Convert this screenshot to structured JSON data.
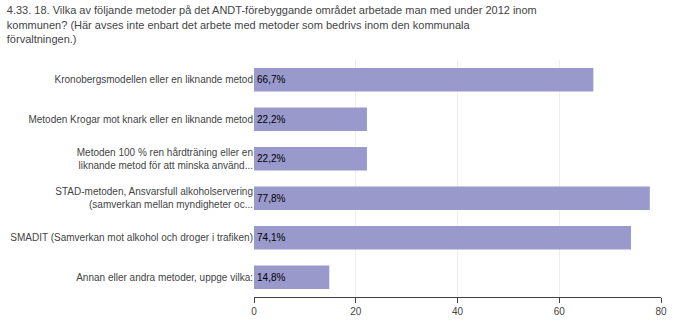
{
  "chart_data": {
    "type": "bar",
    "orientation": "horizontal",
    "title": "4.33. 18. Vilka av följande metoder på det ANDT-förebyggande området arbetade man med under 2012 inom\nkommunen? (Här avses inte enbart det arbete med metoder som bedrivs inom den kommunala\nförvaltningen.)",
    "categories": [
      "Kronobergsmodellen eller en liknande metod",
      "Metoden Krogar mot knark eller en liknande metod",
      "Metoden 100 % ren hårdträning eller en\nliknande metod för att minska använd...",
      "STAD-metoden, Ansvarsfull alkoholservering\n(samverkan mellan myndigheter oc...",
      "SMADIT (Samverkan mot alkohol och droger i trafiken)",
      "Annan eller andra metoder, uppge vilka:"
    ],
    "values": [
      66.7,
      22.2,
      22.2,
      77.8,
      74.1,
      14.8
    ],
    "value_labels": [
      "66,7%",
      "22,2%",
      "22,2%",
      "77,8%",
      "74,1%",
      "14,8%"
    ],
    "data_labels": true,
    "color": "#9999cc",
    "xlim": [
      0,
      80
    ],
    "xticks": [
      0,
      20,
      40,
      60,
      80
    ],
    "grid": true
  }
}
